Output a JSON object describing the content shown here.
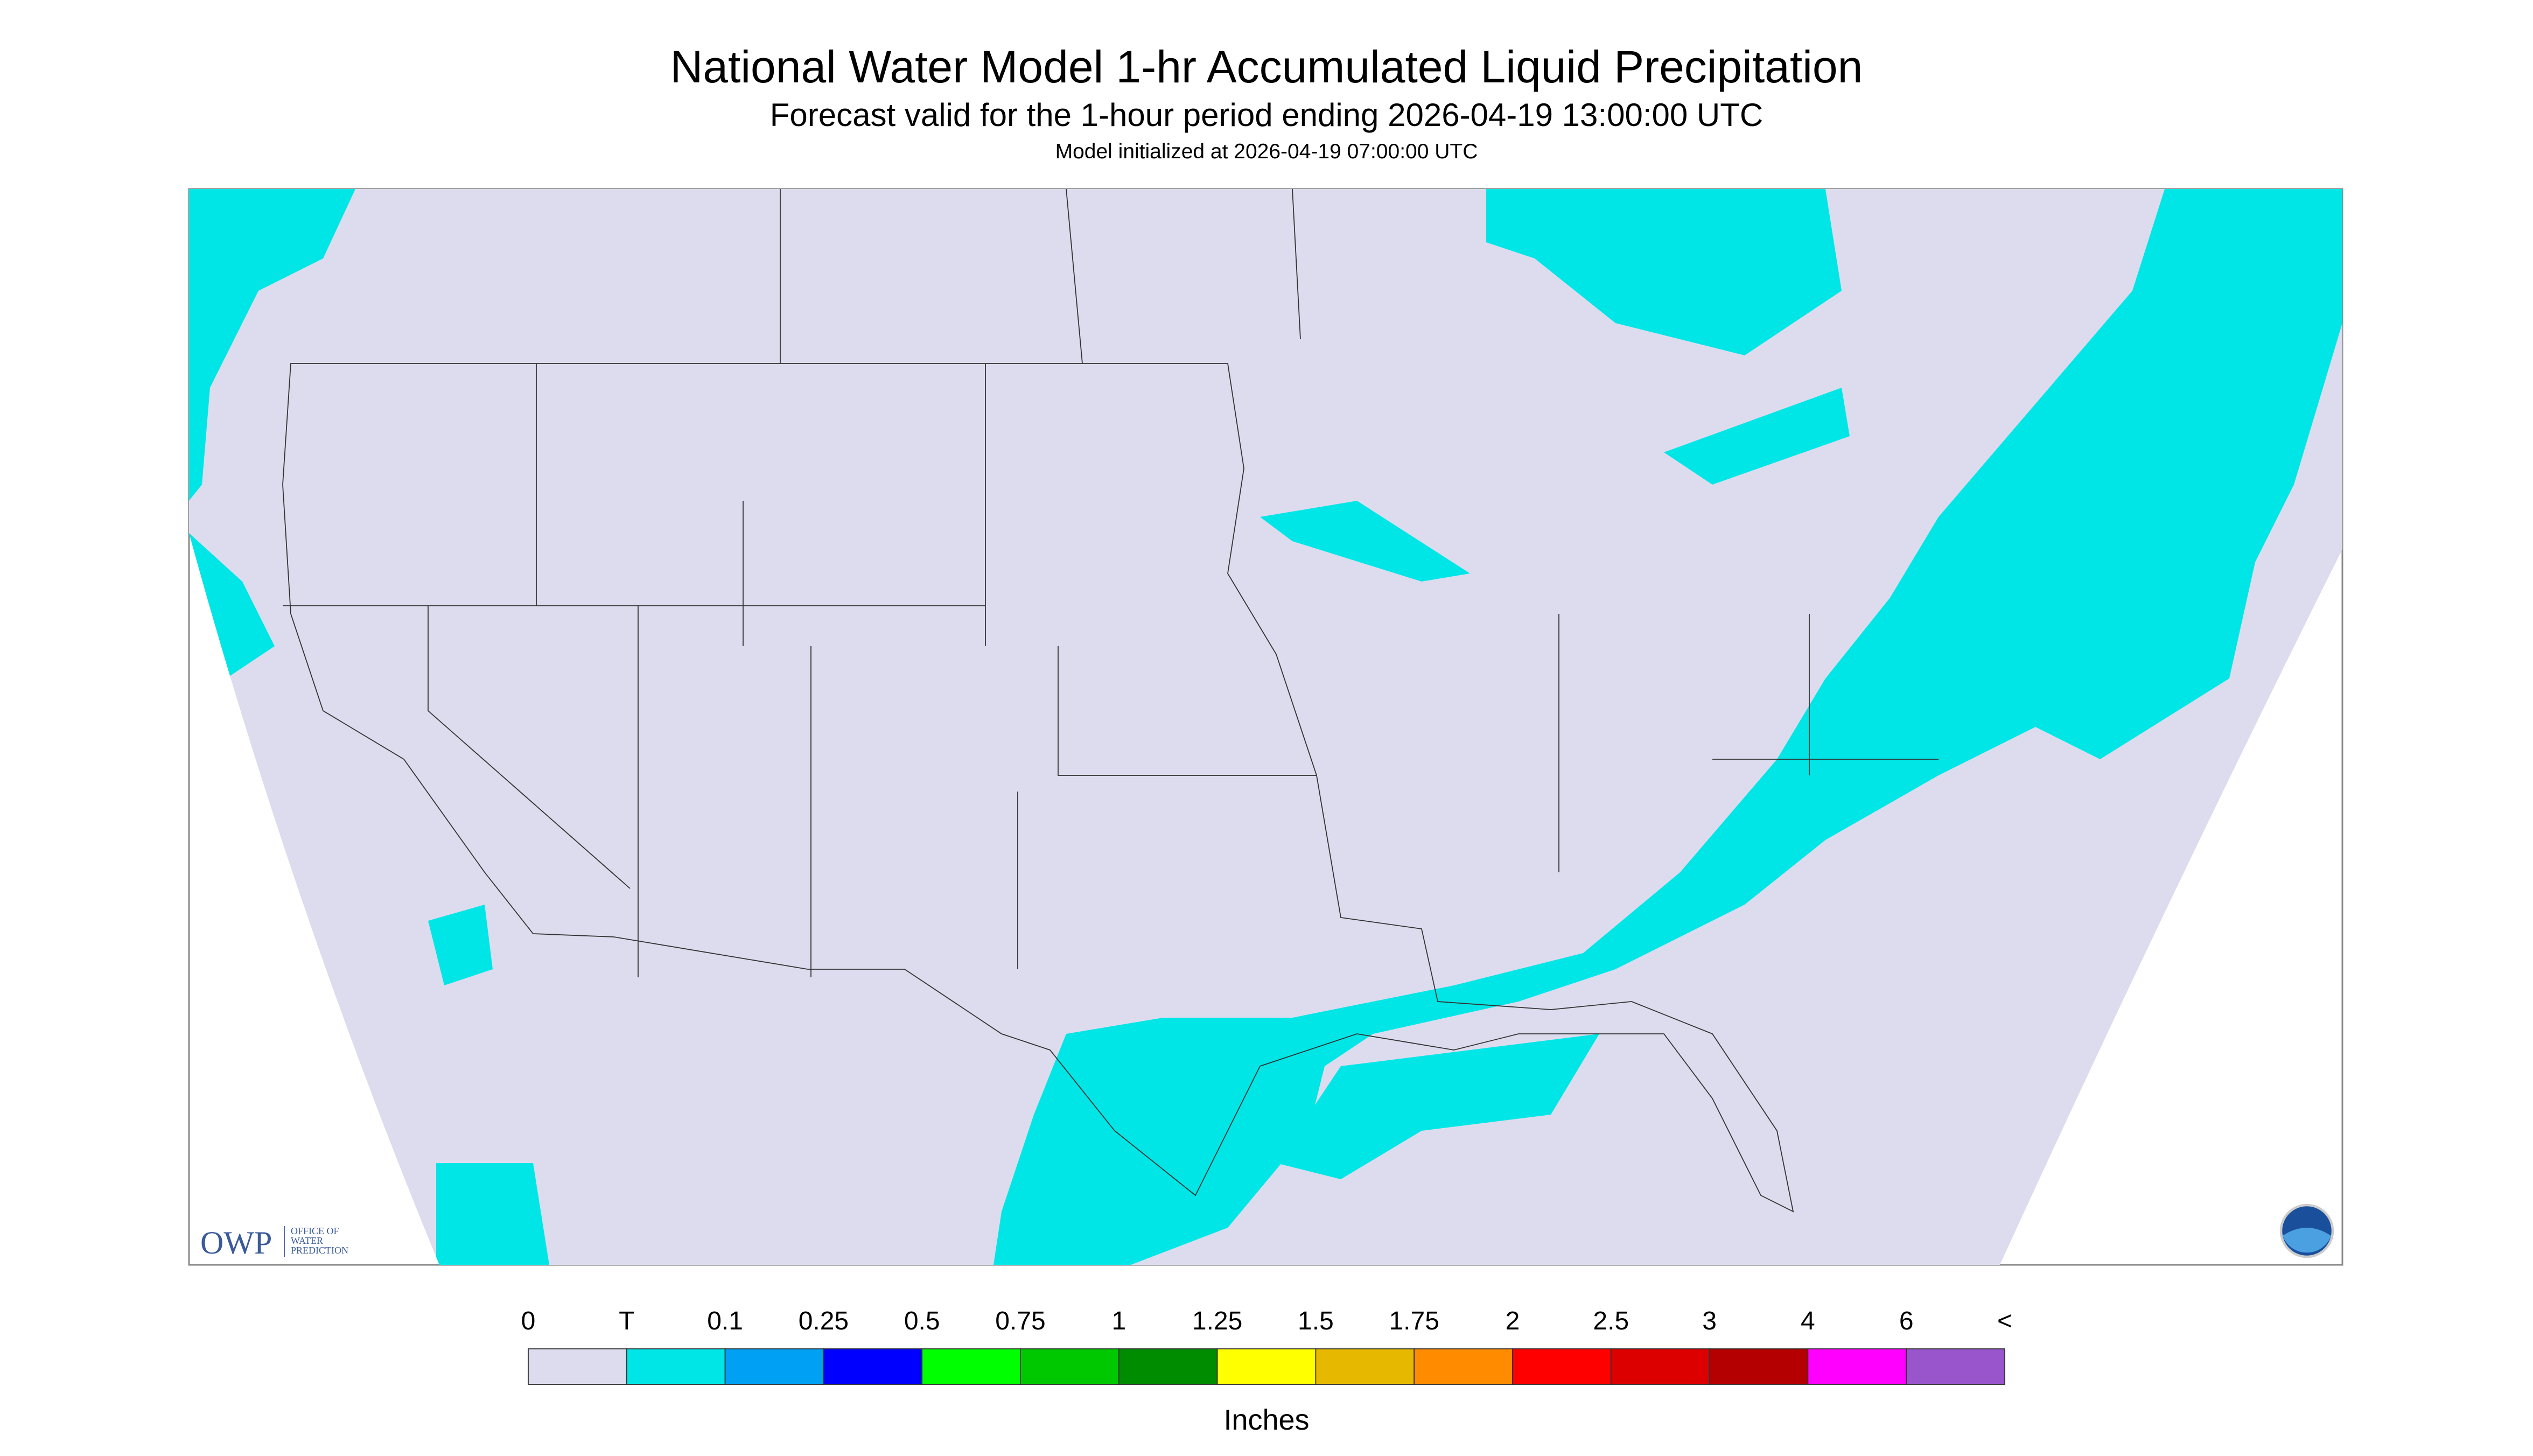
{
  "header": {
    "title": "National Water Model 1-hr Accumulated Liquid Precipitation",
    "subtitle": "Forecast valid for the 1-hour period ending 2026-04-19 13:00:00 UTC",
    "note": "Model initialized at 2026-04-19 07:00:00 UTC"
  },
  "logo": {
    "acronym": "OWP",
    "name": [
      "OFFICE OF",
      "WATER",
      "PREDICTION"
    ]
  },
  "legend": {
    "labels": [
      "0",
      "T",
      "0.1",
      "0.25",
      "0.5",
      "0.75",
      "1",
      "1.25",
      "1.5",
      "1.75",
      "2",
      "2.5",
      "3",
      "4",
      "6",
      "<"
    ],
    "colors": [
      "#dcdcee",
      "#00e6e6",
      "#00a0f5",
      "#0000ff",
      "#00ff00",
      "#00c800",
      "#008c00",
      "#ffff00",
      "#e6b800",
      "#ff8c00",
      "#ff0000",
      "#dc0000",
      "#b40000",
      "#ff00ff",
      "#9955cc"
    ],
    "unit": "Inches"
  }
}
